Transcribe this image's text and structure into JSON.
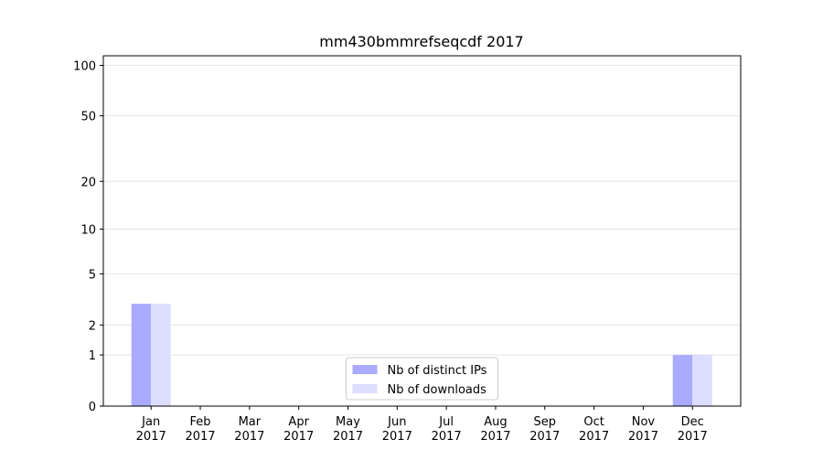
{
  "chart_data": {
    "type": "bar",
    "title": "mm430bmmrefseqcdf 2017",
    "categories": [
      "Jan\n2017",
      "Feb\n2017",
      "Mar\n2017",
      "Apr\n2017",
      "May\n2017",
      "Jun\n2017",
      "Jul\n2017",
      "Aug\n2017",
      "Sep\n2017",
      "Oct\n2017",
      "Nov\n2017",
      "Dec\n2017"
    ],
    "series": [
      {
        "name": "Nb of distinct IPs",
        "color": "#aaaaff",
        "values": [
          3,
          0,
          0,
          0,
          0,
          0,
          0,
          0,
          0,
          0,
          0,
          1
        ]
      },
      {
        "name": "Nb of downloads",
        "color": "#ddddff",
        "values": [
          3,
          0,
          0,
          0,
          0,
          0,
          0,
          0,
          0,
          0,
          0,
          1
        ]
      }
    ],
    "yscale": "log1p",
    "ylim": [
      0,
      114
    ],
    "yticks": [
      0,
      1,
      2,
      5,
      10,
      20,
      50,
      100
    ],
    "grid": true,
    "legend": "lower center"
  }
}
